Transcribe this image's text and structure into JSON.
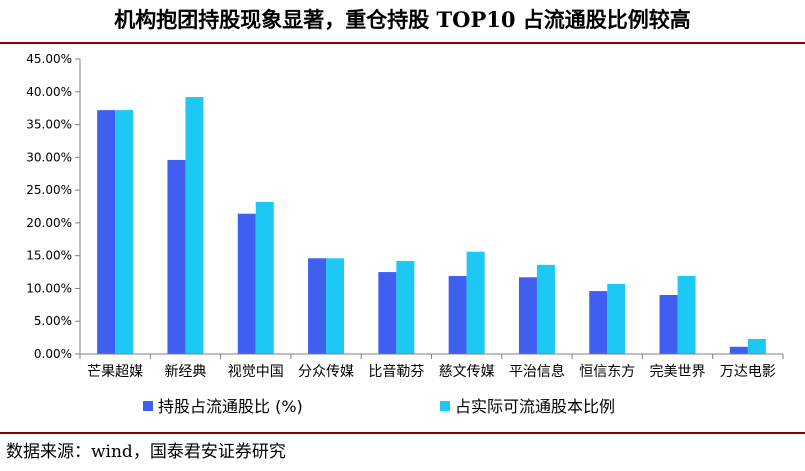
{
  "title": "机构抱团持股现象显著，重仓持股 TOP10 占流通股比例较高",
  "source": "数据来源：wind，国泰君安证券研究",
  "colors": {
    "series1": "#3f5ff0",
    "series2": "#1ec8f5",
    "title_rule": "#8b0000",
    "axis": "#808080"
  },
  "chart_data": {
    "type": "bar",
    "title": "机构抱团持股现象显著，重仓持股 TOP10 占流通股比例较高",
    "xlabel": "",
    "ylabel": "",
    "ylim": [
      0,
      45
    ],
    "yticks": [
      "0.00%",
      "5.00%",
      "10.00%",
      "15.00%",
      "20.00%",
      "25.00%",
      "30.00%",
      "35.00%",
      "40.00%",
      "45.00%"
    ],
    "grid": false,
    "legend_position": "bottom",
    "categories": [
      "芒果超媒",
      "新经典",
      "视觉中国",
      "分众传媒",
      "比音勒芬",
      "慈文传媒",
      "平治信息",
      "恒信东方",
      "完美世界",
      "万达电影"
    ],
    "series": [
      {
        "name": "持股占流通股比 (%)",
        "values": [
          37.2,
          29.6,
          21.4,
          14.6,
          12.5,
          11.9,
          11.7,
          9.6,
          9.0,
          1.1
        ]
      },
      {
        "name": "占实际可流通股本比例",
        "values": [
          37.2,
          39.2,
          23.2,
          14.6,
          14.2,
          15.6,
          13.6,
          10.7,
          11.9,
          2.3
        ]
      }
    ]
  }
}
